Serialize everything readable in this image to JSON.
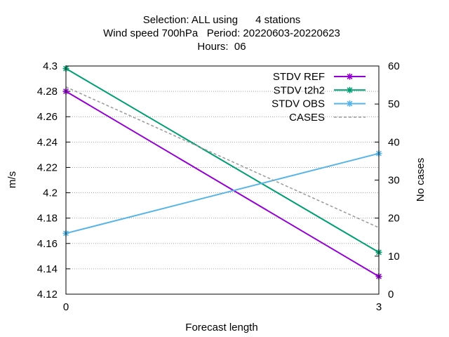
{
  "chart_data": {
    "type": "line",
    "title_lines": [
      "Selection: ALL using      4 stations",
      "Wind speed 700hPa   Period: 20220603-20220623",
      "Hours:  06"
    ],
    "xlabel": "Forecast length",
    "ylabel": "m/s",
    "y2label": "No cases",
    "x": [
      0,
      3
    ],
    "x_ticks": [
      "0",
      "3"
    ],
    "xlim": [
      0,
      3
    ],
    "ylim": [
      4.12,
      4.3
    ],
    "y_ticks": [
      "4.12",
      "4.14",
      "4.16",
      "4.18",
      "4.2",
      "4.22",
      "4.24",
      "4.26",
      "4.28",
      "4.3"
    ],
    "y2lim": [
      0,
      60
    ],
    "y2_ticks": [
      "0",
      "10",
      "20",
      "30",
      "40",
      "50",
      "60"
    ],
    "grid": true,
    "legend_position": "top-right",
    "series": [
      {
        "name": "STDV REF",
        "axis": "y",
        "color": "#9400d3",
        "marker": "star",
        "dash": false,
        "values": [
          4.28,
          4.134
        ]
      },
      {
        "name": "STDV t2h2",
        "axis": "y",
        "color": "#009e73",
        "marker": "star",
        "dash": false,
        "values": [
          4.298,
          4.153
        ]
      },
      {
        "name": "STDV OBS",
        "axis": "y",
        "color": "#56b4e9",
        "marker": "star",
        "dash": false,
        "values": [
          4.168,
          4.231
        ]
      },
      {
        "name": "CASES",
        "axis": "y2",
        "color": "#999999",
        "marker": "none",
        "dash": true,
        "values": [
          54.5,
          17.5
        ]
      }
    ]
  }
}
